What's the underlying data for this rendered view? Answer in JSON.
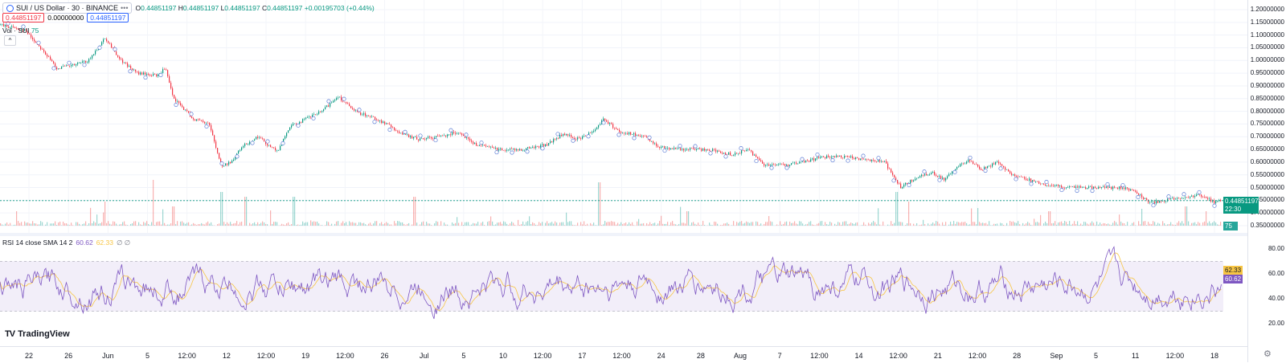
{
  "legend": {
    "symbol": "SUI / US Dollar · 30 · BINANCE",
    "dots": "•••",
    "o_label": "O",
    "o_value": "0.44851197",
    "h_label": "H",
    "h_value": "0.44851197",
    "l_label": "L",
    "l_value": "0.44851197",
    "c_label": "C",
    "c_value": "0.44851197",
    "change": "+0.00195703 (+0.44%)",
    "sell_price": "0.44851197",
    "spread": "0.00000000",
    "buy_price": "0.44851197",
    "vol_label": "Vol · SUI",
    "vol_value": "75"
  },
  "rsi_legend": {
    "label": "RSI 14 close SMA 14 2",
    "rsi_value": "60.62",
    "sma_value": "62.33",
    "extra": "∅ ∅"
  },
  "price_axis": [
    "1.20000000",
    "1.15000000",
    "1.10000000",
    "1.05000000",
    "1.00000000",
    "0.95000000",
    "0.90000000",
    "0.85000000",
    "0.80000000",
    "0.75000000",
    "0.70000000",
    "0.65000000",
    "0.60000000",
    "0.55000000",
    "0.50000000",
    "0.45000000",
    "0.40000000",
    "0.35000000"
  ],
  "price_axis_top": 1.2,
  "price_axis_bottom": 0.35,
  "rsi_axis": [
    "80.00",
    "60.00",
    "40.00",
    "20.00"
  ],
  "current_price_tag": "0.44851197",
  "countdown_tag": "22:30",
  "volume_tag": "75",
  "rsi_tag": "60.62",
  "sma_tag": "62.33",
  "time_axis": [
    "22",
    "26",
    "Jun",
    "5",
    "12:00",
    "12",
    "12:00",
    "19",
    "12:00",
    "26",
    "Jul",
    "5",
    "10",
    "12:00",
    "17",
    "12:00",
    "24",
    "28",
    "Aug",
    "7",
    "12:00",
    "14",
    "12:00",
    "21",
    "12:00",
    "28",
    "Sep",
    "5",
    "11",
    "12:00",
    "18"
  ],
  "brand": "TradingView",
  "colors": {
    "up": "#089981",
    "down": "#f23645",
    "rsi": "#7e57c2",
    "sma": "#f7c544",
    "band": "#ede7f6"
  },
  "chart_data": {
    "type": "line",
    "price_path": [
      [
        0,
        1.14
      ],
      [
        30,
        1.12
      ],
      [
        50,
        1.05
      ],
      [
        70,
        0.97
      ],
      [
        90,
        0.98
      ],
      [
        110,
        1.0
      ],
      [
        130,
        1.09
      ],
      [
        150,
        1.0
      ],
      [
        170,
        0.95
      ],
      [
        195,
        0.94
      ],
      [
        205,
        0.97
      ],
      [
        215,
        0.85
      ],
      [
        225,
        0.82
      ],
      [
        240,
        0.77
      ],
      [
        260,
        0.75
      ],
      [
        275,
        0.58
      ],
      [
        290,
        0.61
      ],
      [
        300,
        0.66
      ],
      [
        320,
        0.7
      ],
      [
        345,
        0.64
      ],
      [
        360,
        0.74
      ],
      [
        380,
        0.77
      ],
      [
        400,
        0.8
      ],
      [
        420,
        0.86
      ],
      [
        440,
        0.8
      ],
      [
        460,
        0.78
      ],
      [
        480,
        0.75
      ],
      [
        500,
        0.71
      ],
      [
        520,
        0.69
      ],
      [
        545,
        0.7
      ],
      [
        570,
        0.72
      ],
      [
        590,
        0.67
      ],
      [
        620,
        0.65
      ],
      [
        650,
        0.65
      ],
      [
        680,
        0.67
      ],
      [
        700,
        0.71
      ],
      [
        720,
        0.69
      ],
      [
        740,
        0.73
      ],
      [
        750,
        0.77
      ],
      [
        770,
        0.72
      ],
      [
        800,
        0.7
      ],
      [
        820,
        0.66
      ],
      [
        850,
        0.65
      ],
      [
        880,
        0.65
      ],
      [
        910,
        0.63
      ],
      [
        930,
        0.65
      ],
      [
        950,
        0.59
      ],
      [
        980,
        0.59
      ],
      [
        1000,
        0.6
      ],
      [
        1020,
        0.62
      ],
      [
        1050,
        0.62
      ],
      [
        1080,
        0.61
      ],
      [
        1100,
        0.6
      ],
      [
        1120,
        0.5
      ],
      [
        1140,
        0.54
      ],
      [
        1160,
        0.56
      ],
      [
        1175,
        0.53
      ],
      [
        1190,
        0.58
      ],
      [
        1205,
        0.61
      ],
      [
        1220,
        0.57
      ],
      [
        1240,
        0.6
      ],
      [
        1260,
        0.55
      ],
      [
        1280,
        0.53
      ],
      [
        1300,
        0.51
      ],
      [
        1330,
        0.5
      ],
      [
        1360,
        0.5
      ],
      [
        1390,
        0.5
      ],
      [
        1410,
        0.49
      ],
      [
        1430,
        0.44
      ],
      [
        1450,
        0.45
      ],
      [
        1470,
        0.46
      ],
      [
        1495,
        0.47
      ],
      [
        1510,
        0.44
      ],
      [
        1520,
        0.45
      ]
    ],
    "rsi_levels": {
      "upper": 70,
      "lower": 30,
      "ylim": [
        10,
        90
      ]
    },
    "volume_spikes": [
      [
        20,
        0.3
      ],
      [
        130,
        0.5
      ],
      [
        190,
        0.95
      ],
      [
        215,
        0.4
      ],
      [
        275,
        0.7
      ],
      [
        305,
        0.6
      ],
      [
        365,
        0.6
      ],
      [
        515,
        0.6
      ],
      [
        745,
        0.9
      ],
      [
        855,
        0.3
      ],
      [
        1115,
        0.7
      ],
      [
        1130,
        0.5
      ],
      [
        1305,
        0.3
      ],
      [
        1420,
        0.35
      ],
      [
        1475,
        0.4
      ],
      [
        1500,
        0.3
      ]
    ]
  }
}
